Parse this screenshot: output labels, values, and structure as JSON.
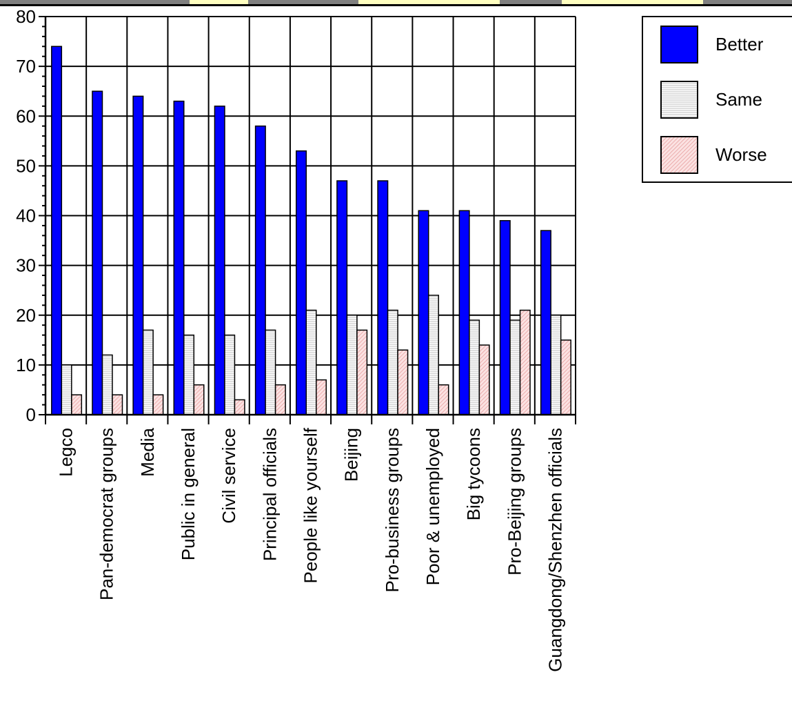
{
  "chart_data": {
    "type": "bar",
    "categories": [
      "Legco",
      "Pan-democrat groups",
      "Media",
      "Public in general",
      "Civil service",
      "Principal officials",
      "People like yourself",
      "Beijing",
      "Pro-business groups",
      "Poor & unemployed",
      "Big tycoons",
      "Pro-Beijing groups",
      "Guangdong/Shenzhen officials"
    ],
    "series": [
      {
        "name": "Better",
        "color": "#0000ff",
        "values": [
          74,
          65,
          64,
          63,
          62,
          58,
          53,
          47,
          47,
          41,
          41,
          39,
          37
        ]
      },
      {
        "name": "Same",
        "color": "#f2f2f2",
        "values": [
          10,
          12,
          17,
          16,
          16,
          17,
          21,
          20,
          21,
          24,
          19,
          19,
          20
        ]
      },
      {
        "name": "Worse",
        "color": "#f6c6c6",
        "values": [
          4,
          4,
          4,
          6,
          3,
          6,
          7,
          17,
          13,
          6,
          14,
          21,
          15
        ]
      }
    ],
    "yticks": [
      0,
      10,
      20,
      30,
      40,
      50,
      60,
      70,
      80
    ],
    "ylim": [
      0,
      80
    ],
    "grid": true,
    "legend_position": "top-right"
  }
}
